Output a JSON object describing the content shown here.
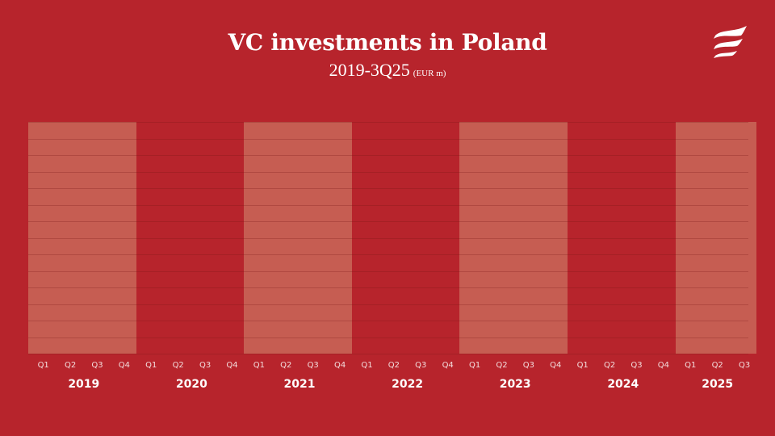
{
  "header": {
    "title": "VC investments in Poland",
    "subtitle": "2019-3Q25",
    "unit": "(EUR m)"
  },
  "logo": {
    "icon": "three-wave-stripes-logo"
  },
  "colors": {
    "background": "#B7242C",
    "band": "#C65D52",
    "text": "#FFFFFF"
  },
  "chart_data": {
    "type": "bar",
    "title": "VC investments in Poland",
    "subtitle": "2019-3Q25 (EUR m)",
    "xlabel": "",
    "ylabel": "EUR m",
    "grid": true,
    "gridlines": 15,
    "years": [
      "2019",
      "2020",
      "2021",
      "2022",
      "2023",
      "2024",
      "2025"
    ],
    "shaded_years": [
      "2019",
      "2021",
      "2023",
      "2025"
    ],
    "categories": [
      "Q1 2019",
      "Q2 2019",
      "Q3 2019",
      "Q4 2019",
      "Q1 2020",
      "Q2 2020",
      "Q3 2020",
      "Q4 2020",
      "Q1 2021",
      "Q2 2021",
      "Q3 2021",
      "Q4 2021",
      "Q1 2022",
      "Q2 2022",
      "Q3 2022",
      "Q4 2022",
      "Q1 2023",
      "Q2 2023",
      "Q3 2023",
      "Q4 2023",
      "Q1 2024",
      "Q2 2024",
      "Q3 2024",
      "Q4 2024",
      "Q1 2025",
      "Q2 2025",
      "Q3 2025"
    ],
    "quarter_labels": [
      "Q1",
      "Q2",
      "Q3",
      "Q4",
      "Q1",
      "Q2",
      "Q3",
      "Q4",
      "Q1",
      "Q2",
      "Q3",
      "Q4",
      "Q1",
      "Q2",
      "Q3",
      "Q4",
      "Q1",
      "Q2",
      "Q3",
      "Q4",
      "Q1",
      "Q2",
      "Q3",
      "Q4",
      "Q1",
      "Q2",
      "Q3"
    ],
    "values": [
      null,
      null,
      null,
      null,
      null,
      null,
      null,
      null,
      null,
      null,
      null,
      null,
      null,
      null,
      null,
      null,
      null,
      null,
      null,
      null,
      null,
      null,
      null,
      null,
      null,
      null,
      null
    ]
  }
}
